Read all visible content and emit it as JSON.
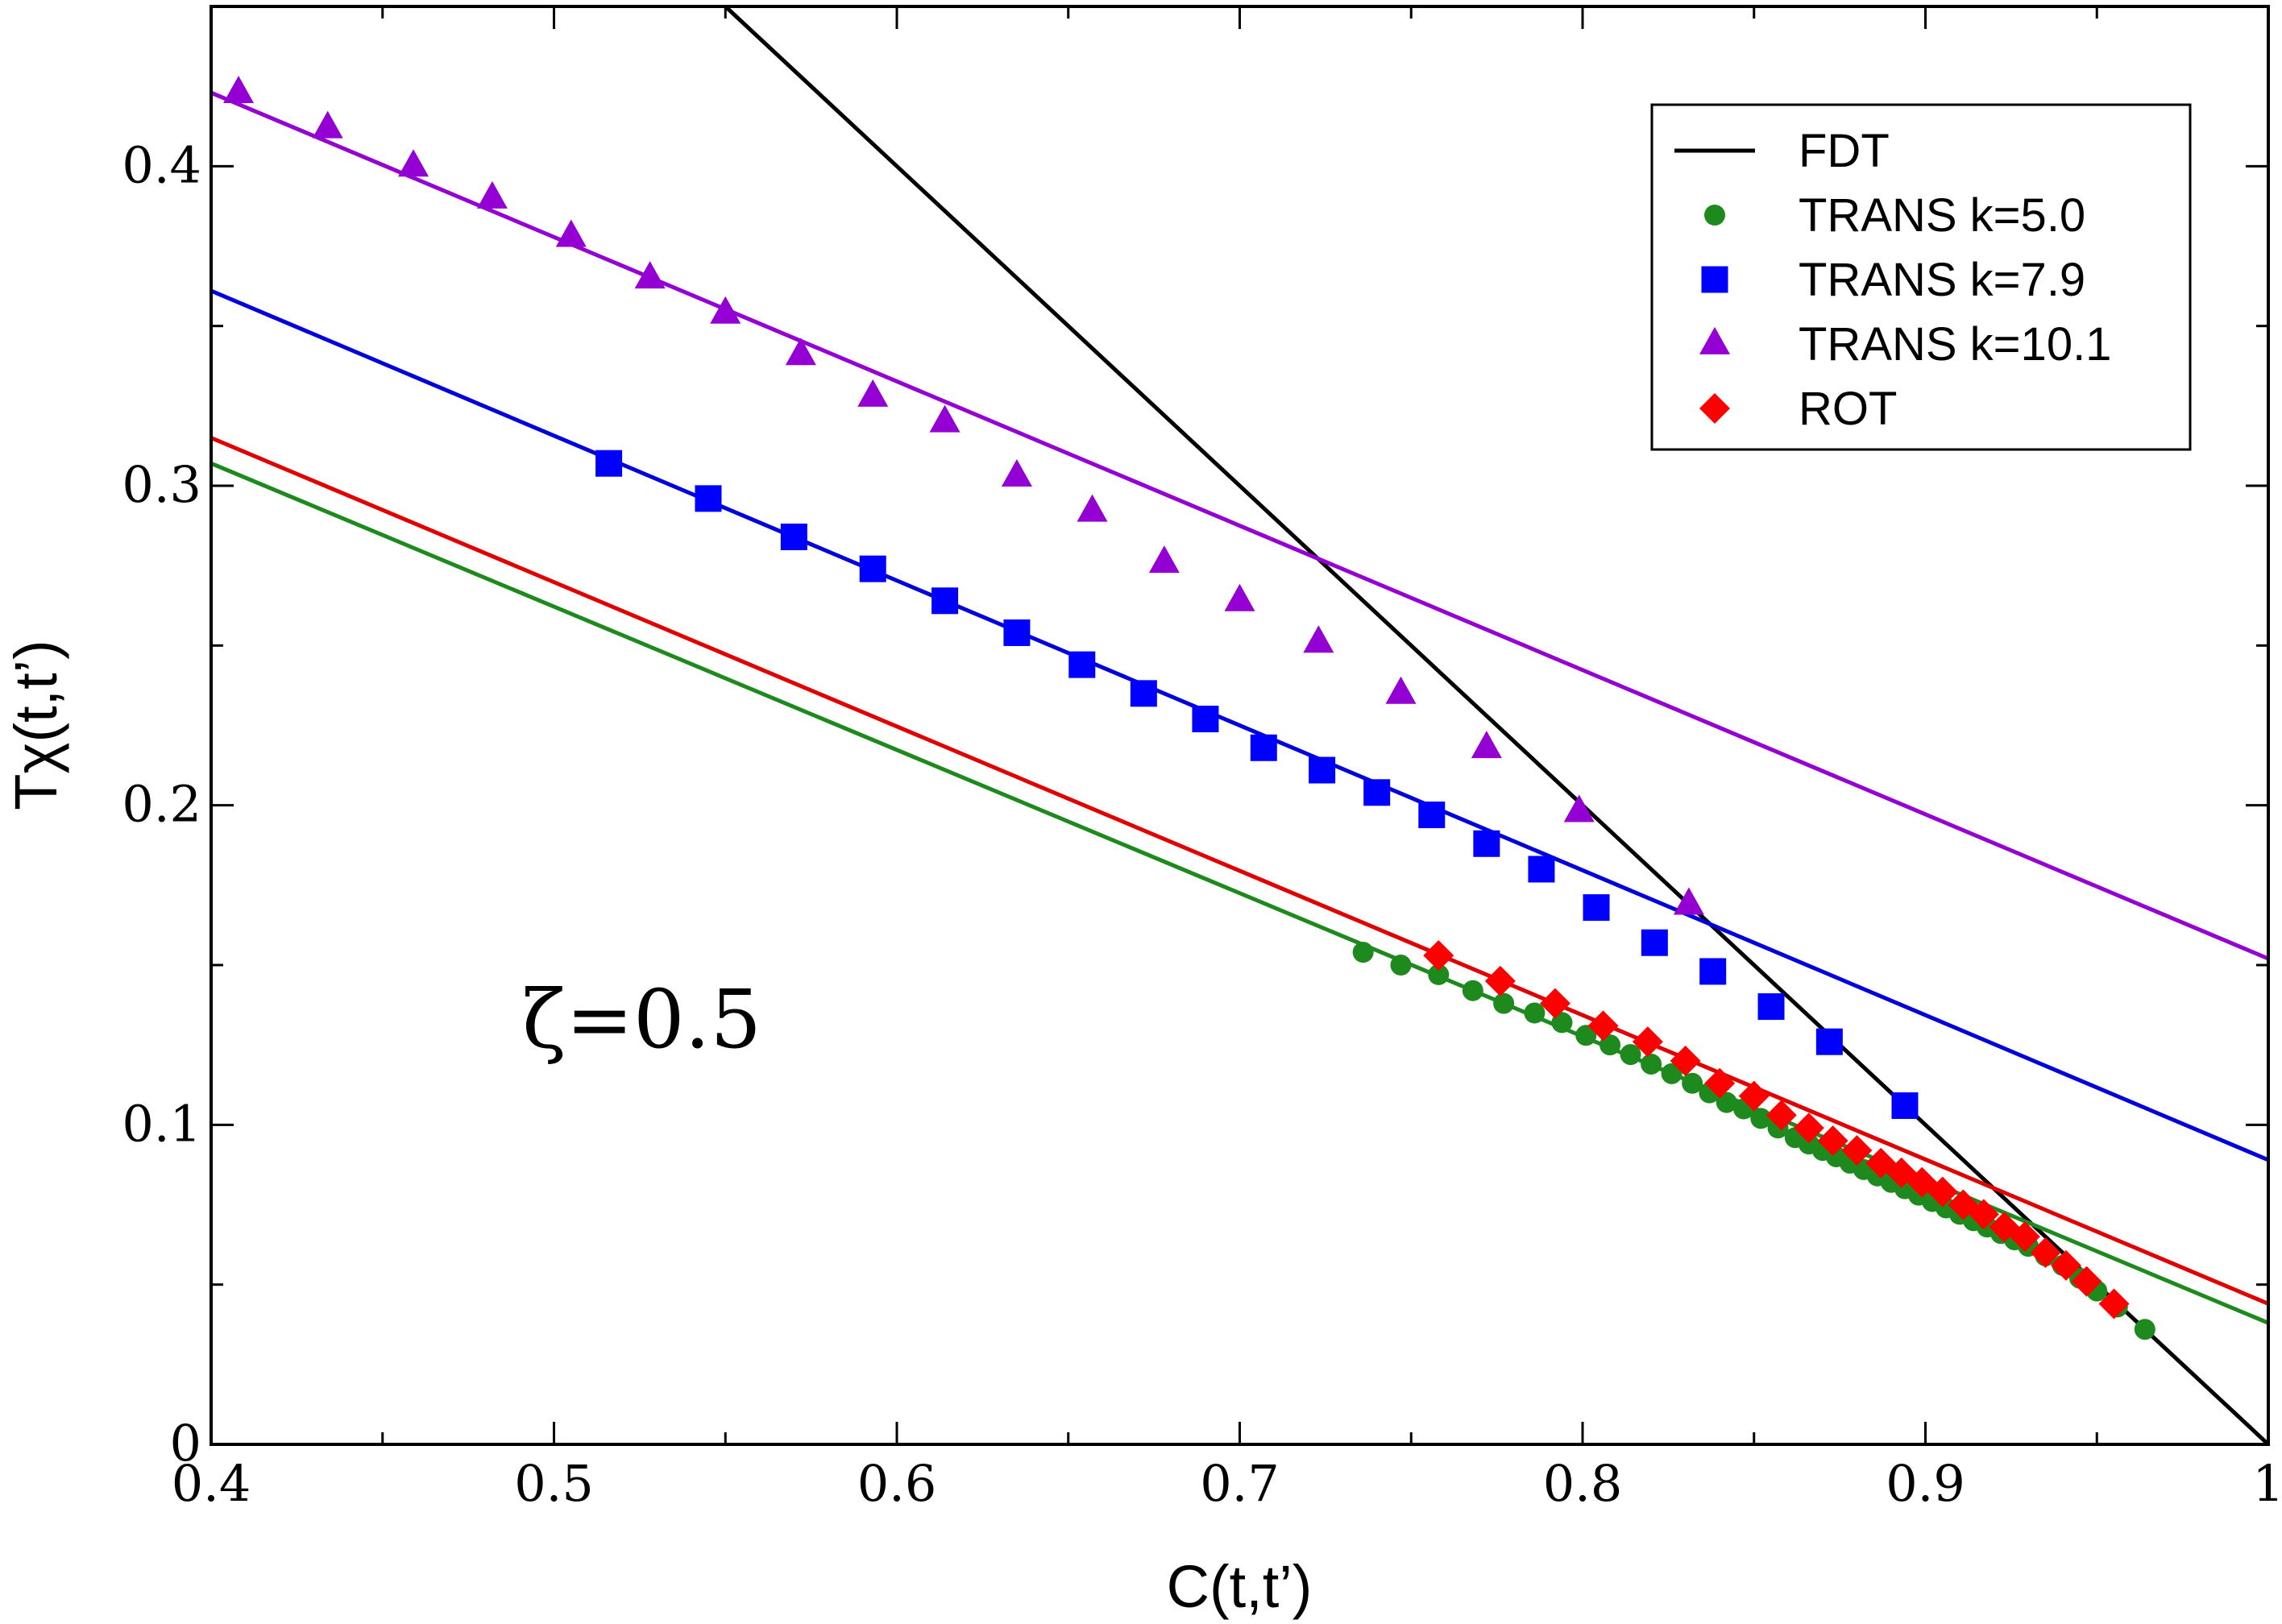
{
  "chart_data": {
    "type": "scatter",
    "title": "",
    "xlabel": "C(t,t’)",
    "ylabel": "Tχ(t,t’)",
    "xlim": [
      0.4,
      1.0
    ],
    "ylim": [
      0.0,
      0.45
    ],
    "xticks": [
      0.4,
      0.5,
      0.6,
      0.7,
      0.8,
      0.9,
      1.0
    ],
    "xtick_labels": [
      "0.4",
      "0.5",
      "0.6",
      "0.7",
      "0.8",
      "0.9",
      "1"
    ],
    "yticks": [
      0,
      0.1,
      0.2,
      0.3,
      0.4
    ],
    "ytick_labels": [
      "0",
      "0.1",
      "0.2",
      "0.3",
      "0.4"
    ],
    "legend_position": "top-right",
    "annotation": "ζ=0.5",
    "lines": [
      {
        "name": "FDT",
        "color": "#000000",
        "x": [
          0.55,
          1.0
        ],
        "y": [
          0.45,
          0.0
        ],
        "legend": true
      },
      {
        "name": "TRANS k=5.0 fit",
        "color": "#1e8a1e",
        "x": [
          0.4,
          1.0
        ],
        "y": [
          0.307,
          0.038
        ],
        "legend": false
      },
      {
        "name": "ROT fit",
        "color": "#e00000",
        "x": [
          0.4,
          1.0
        ],
        "y": [
          0.315,
          0.044
        ],
        "legend": false
      },
      {
        "name": "TRANS k=7.9 fit",
        "color": "#0000dd",
        "x": [
          0.4,
          1.0
        ],
        "y": [
          0.361,
          0.089
        ],
        "legend": false
      },
      {
        "name": "TRANS k=10.1 fit",
        "color": "#9400d3",
        "x": [
          0.4,
          1.0
        ],
        "y": [
          0.423,
          0.152
        ],
        "legend": false
      }
    ],
    "series": [
      {
        "name": "TRANS k=5.0",
        "marker": "circle",
        "color": "#1e8a1e",
        "x": [
          0.736,
          0.747,
          0.758,
          0.768,
          0.777,
          0.786,
          0.794,
          0.801,
          0.808,
          0.814,
          0.82,
          0.826,
          0.832,
          0.837,
          0.842,
          0.847,
          0.852,
          0.857,
          0.862,
          0.866,
          0.87,
          0.874,
          0.878,
          0.882,
          0.886,
          0.89,
          0.894,
          0.898,
          0.902,
          0.906,
          0.91,
          0.914,
          0.918,
          0.922,
          0.926,
          0.93,
          0.935,
          0.94,
          0.945,
          0.95,
          0.956,
          0.964
        ],
        "y": [
          0.154,
          0.15,
          0.147,
          0.142,
          0.138,
          0.135,
          0.132,
          0.128,
          0.125,
          0.122,
          0.119,
          0.116,
          0.113,
          0.11,
          0.107,
          0.105,
          0.102,
          0.099,
          0.096,
          0.094,
          0.092,
          0.09,
          0.088,
          0.086,
          0.084,
          0.082,
          0.08,
          0.078,
          0.076,
          0.074,
          0.072,
          0.07,
          0.068,
          0.066,
          0.064,
          0.062,
          0.059,
          0.056,
          0.052,
          0.048,
          0.043,
          0.036
        ]
      },
      {
        "name": "TRANS k=7.9",
        "marker": "square",
        "color": "#0000ff",
        "x": [
          0.516,
          0.545,
          0.57,
          0.593,
          0.614,
          0.635,
          0.654,
          0.672,
          0.69,
          0.707,
          0.724,
          0.74,
          0.756,
          0.772,
          0.788,
          0.804,
          0.821,
          0.838,
          0.855,
          0.872,
          0.894
        ],
        "y": [
          0.307,
          0.296,
          0.284,
          0.274,
          0.264,
          0.254,
          0.244,
          0.235,
          0.227,
          0.218,
          0.211,
          0.204,
          0.197,
          0.188,
          0.18,
          0.168,
          0.157,
          0.148,
          0.137,
          0.126,
          0.106
        ]
      },
      {
        "name": "TRANS k=10.1",
        "marker": "triangle",
        "color": "#9400d3",
        "x": [
          0.408,
          0.434,
          0.459,
          0.482,
          0.505,
          0.528,
          0.55,
          0.572,
          0.593,
          0.614,
          0.635,
          0.657,
          0.678,
          0.7,
          0.723,
          0.747,
          0.772,
          0.799,
          0.831
        ],
        "y": [
          0.423,
          0.412,
          0.4,
          0.39,
          0.378,
          0.365,
          0.354,
          0.341,
          0.328,
          0.32,
          0.303,
          0.292,
          0.276,
          0.264,
          0.251,
          0.235,
          0.218,
          0.198,
          0.169
        ]
      },
      {
        "name": "ROT",
        "marker": "diamond",
        "color": "#ff0000",
        "x": [
          0.758,
          0.776,
          0.792,
          0.806,
          0.819,
          0.83,
          0.84,
          0.85,
          0.858,
          0.866,
          0.873,
          0.88,
          0.887,
          0.893,
          0.899,
          0.905,
          0.911,
          0.917,
          0.923,
          0.929,
          0.935,
          0.941,
          0.947,
          0.955
        ],
        "y": [
          0.153,
          0.145,
          0.138,
          0.131,
          0.126,
          0.12,
          0.113,
          0.109,
          0.103,
          0.099,
          0.095,
          0.092,
          0.088,
          0.085,
          0.082,
          0.079,
          0.075,
          0.072,
          0.068,
          0.065,
          0.06,
          0.056,
          0.051,
          0.044
        ]
      }
    ]
  }
}
